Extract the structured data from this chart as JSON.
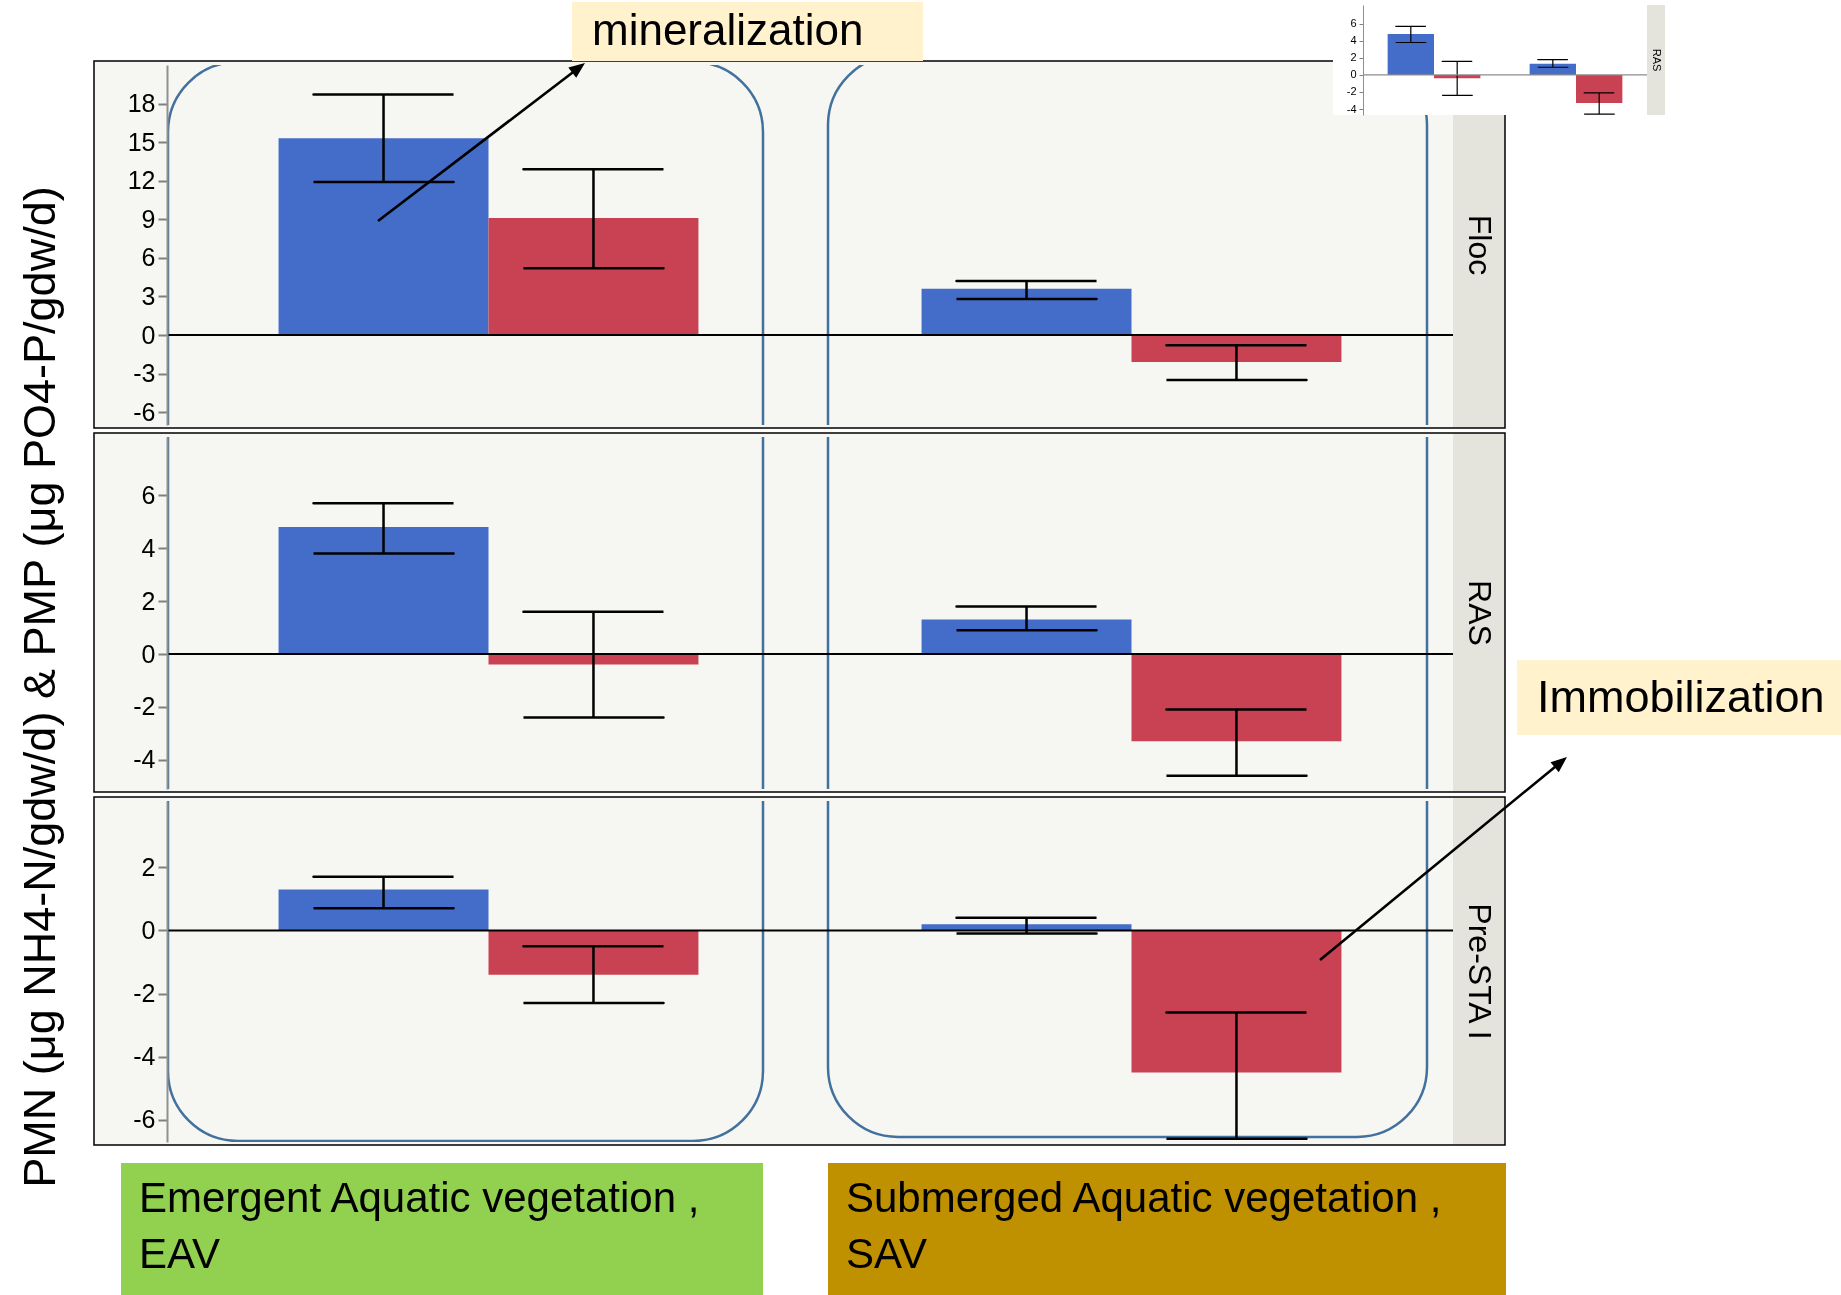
{
  "chart_data": [
    {
      "type": "bar",
      "title": "Floc",
      "categories": [
        null,
        null
      ],
      "tick_labels": "y",
      "series": [
        {
          "color": "#436dc8",
          "values": [
            15.3,
            3.6
          ],
          "errors": [
            [
              11.9,
              18.7
            ],
            [
              2.8,
              4.2
            ]
          ]
        },
        {
          "color": "#c94253",
          "values": [
            9.1,
            -2.1
          ],
          "errors": [
            [
              5.2,
              12.9
            ],
            [
              -3.5,
              -0.8
            ]
          ]
        }
      ],
      "ylim": [
        -7,
        21
      ],
      "yticks": [
        -6,
        -3,
        0,
        3,
        6,
        9,
        12,
        15,
        18
      ],
      "ref_lines": [
        {
          "axis": "y",
          "value": 0,
          "color": "#000000"
        }
      ],
      "annotations": [
        "mineralization"
      ]
    },
    {
      "type": "bar",
      "title": "RAS",
      "categories": [
        null,
        null
      ],
      "tick_labels": "y",
      "ylabel": "PMN (μg NH4-N/gdw/d) & PMP (μg PO4-P/gdw/d)",
      "series": [
        {
          "color": "#436dc8",
          "values": [
            4.8,
            1.3
          ],
          "errors": [
            [
              3.8,
              5.7
            ],
            [
              0.9,
              1.8
            ]
          ]
        },
        {
          "color": "#c94253",
          "values": [
            -0.4,
            -3.3
          ],
          "errors": [
            [
              -2.4,
              1.6
            ],
            [
              -4.6,
              -2.1
            ]
          ]
        }
      ],
      "ylim": [
        -5.1,
        8.2
      ],
      "yticks": [
        -4,
        -2,
        0,
        2,
        4,
        6
      ],
      "ref_lines": [
        {
          "axis": "y",
          "value": 0,
          "color": "#000000"
        }
      ]
    },
    {
      "type": "bar",
      "title": "Pre-STA I",
      "categories": [
        "Emergent Aquatic vegetation , EAV",
        "Submerged Aquatic vegetation , SAV"
      ],
      "series": [
        {
          "color": "#436dc8",
          "values": [
            1.3,
            0.2
          ],
          "errors": [
            [
              0.7,
              1.7
            ],
            [
              -0.1,
              0.4
            ]
          ]
        },
        {
          "color": "#c94253",
          "values": [
            -1.4,
            -4.5
          ],
          "errors": [
            [
              -2.3,
              -0.5
            ],
            [
              -6.6,
              -2.6
            ]
          ]
        }
      ],
      "ylim": [
        -6.7,
        4.1
      ],
      "yticks": [
        -6,
        -4,
        -2,
        0,
        2
      ],
      "ref_lines": [
        {
          "axis": "y",
          "value": 0,
          "color": "#000000"
        }
      ],
      "annotations": [
        "Immobilization"
      ]
    },
    {
      "type": "bar",
      "title": "RAS",
      "categories": [
        null,
        null
      ],
      "tick_labels": "y",
      "series": [
        {
          "color": "#436dc8",
          "values": [
            4.8,
            1.3
          ],
          "errors": [
            [
              3.8,
              5.7
            ],
            [
              0.9,
              1.8
            ]
          ]
        },
        {
          "color": "#c94253",
          "values": [
            -0.4,
            -3.3
          ],
          "errors": [
            [
              -2.4,
              1.6
            ],
            [
              -4.6,
              -2.1
            ]
          ]
        }
      ],
      "ylim": [
        -4.7,
        8.2
      ],
      "yticks": [
        -4,
        -2,
        0,
        2,
        4,
        6
      ],
      "ref_lines": [
        {
          "axis": "y",
          "value": 0,
          "color": "#8c8c8c"
        }
      ]
    }
  ]
}
